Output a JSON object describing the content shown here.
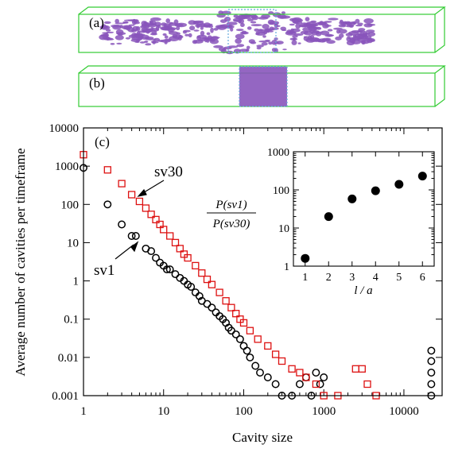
{
  "panels": {
    "a": {
      "label": "(a)"
    },
    "b": {
      "label": "(b)"
    },
    "c": {
      "label": "(c)"
    }
  },
  "colors": {
    "box": "#33cc33",
    "slab": "#66aadd",
    "cloud": "#8855bb",
    "sv1": "#000000",
    "sv30": "#dd1111"
  },
  "chart_data": [
    {
      "type": "scatter",
      "scale": "log-log",
      "xlabel": "Cavity size",
      "ylabel": "Average number of cavities per timeframe",
      "xlim": [
        1,
        30000
      ],
      "ylim": [
        0.001,
        10000
      ],
      "xticks": [
        "1",
        "10",
        "100",
        "1000",
        "10000"
      ],
      "yticks": [
        "0.001",
        "0.01",
        "0.1",
        "1",
        "10",
        "100",
        "1000",
        "10000"
      ],
      "annotations": [
        "sv30",
        "sv1"
      ],
      "series": [
        {
          "name": "sv1",
          "marker": "circle",
          "points": [
            [
              1,
              900
            ],
            [
              2,
              100
            ],
            [
              3,
              30
            ],
            [
              4,
              15
            ],
            [
              4.5,
              15
            ],
            [
              6,
              7
            ],
            [
              7,
              6
            ],
            [
              8,
              4
            ],
            [
              9,
              3
            ],
            [
              10,
              2.5
            ],
            [
              11,
              2
            ],
            [
              12,
              2
            ],
            [
              14,
              1.5
            ],
            [
              16,
              1.2
            ],
            [
              18,
              1
            ],
            [
              20,
              0.8
            ],
            [
              22,
              0.7
            ],
            [
              25,
              0.5
            ],
            [
              28,
              0.4
            ],
            [
              30,
              0.3
            ],
            [
              35,
              0.25
            ],
            [
              40,
              0.2
            ],
            [
              45,
              0.15
            ],
            [
              50,
              0.12
            ],
            [
              55,
              0.1
            ],
            [
              60,
              0.08
            ],
            [
              65,
              0.06
            ],
            [
              70,
              0.05
            ],
            [
              80,
              0.04
            ],
            [
              90,
              0.03
            ],
            [
              100,
              0.02
            ],
            [
              110,
              0.015
            ],
            [
              120,
              0.01
            ],
            [
              140,
              0.006
            ],
            [
              160,
              0.004
            ],
            [
              200,
              0.003
            ],
            [
              250,
              0.002
            ],
            [
              300,
              0.001
            ],
            [
              400,
              0.001
            ],
            [
              500,
              0.002
            ],
            [
              600,
              0.003
            ],
            [
              700,
              0.001
            ],
            [
              800,
              0.004
            ],
            [
              900,
              0.002
            ],
            [
              1000,
              0.003
            ],
            [
              22000,
              0.001
            ],
            [
              22000,
              0.002
            ],
            [
              22000,
              0.004
            ],
            [
              22000,
              0.008
            ],
            [
              22000,
              0.015
            ]
          ]
        },
        {
          "name": "sv30",
          "marker": "square",
          "points": [
            [
              1,
              2000
            ],
            [
              2,
              800
            ],
            [
              3,
              350
            ],
            [
              4,
              180
            ],
            [
              5,
              120
            ],
            [
              6,
              80
            ],
            [
              7,
              55
            ],
            [
              8,
              40
            ],
            [
              9,
              30
            ],
            [
              10,
              22
            ],
            [
              12,
              15
            ],
            [
              14,
              10
            ],
            [
              16,
              7
            ],
            [
              18,
              5
            ],
            [
              20,
              4
            ],
            [
              25,
              2.5
            ],
            [
              30,
              1.6
            ],
            [
              35,
              1.1
            ],
            [
              40,
              0.8
            ],
            [
              50,
              0.5
            ],
            [
              60,
              0.3
            ],
            [
              70,
              0.2
            ],
            [
              80,
              0.14
            ],
            [
              90,
              0.1
            ],
            [
              100,
              0.08
            ],
            [
              120,
              0.05
            ],
            [
              150,
              0.03
            ],
            [
              200,
              0.02
            ],
            [
              250,
              0.012
            ],
            [
              300,
              0.008
            ],
            [
              400,
              0.005
            ],
            [
              500,
              0.004
            ],
            [
              600,
              0.003
            ],
            [
              800,
              0.002
            ],
            [
              1000,
              0.001
            ],
            [
              1500,
              0.001
            ],
            [
              2500,
              0.005
            ],
            [
              3000,
              0.005
            ],
            [
              3500,
              0.002
            ],
            [
              4500,
              0.001
            ]
          ]
        }
      ]
    },
    {
      "type": "scatter",
      "scale": "semilog-y",
      "xlabel": "l / a",
      "ylabel_num": "P(sv1)",
      "ylabel_den": "P(sv30)",
      "xlim": [
        0.5,
        6.5
      ],
      "ylim": [
        1,
        1000
      ],
      "xticks": [
        "1",
        "2",
        "3",
        "4",
        "5",
        "6"
      ],
      "yticks": [
        "1",
        "10",
        "100",
        "1000"
      ],
      "series": [
        {
          "name": "ratio",
          "x": [
            1,
            2,
            3,
            4,
            5,
            6
          ],
          "y": [
            1.6,
            20,
            58,
            95,
            140,
            230
          ]
        }
      ]
    }
  ]
}
